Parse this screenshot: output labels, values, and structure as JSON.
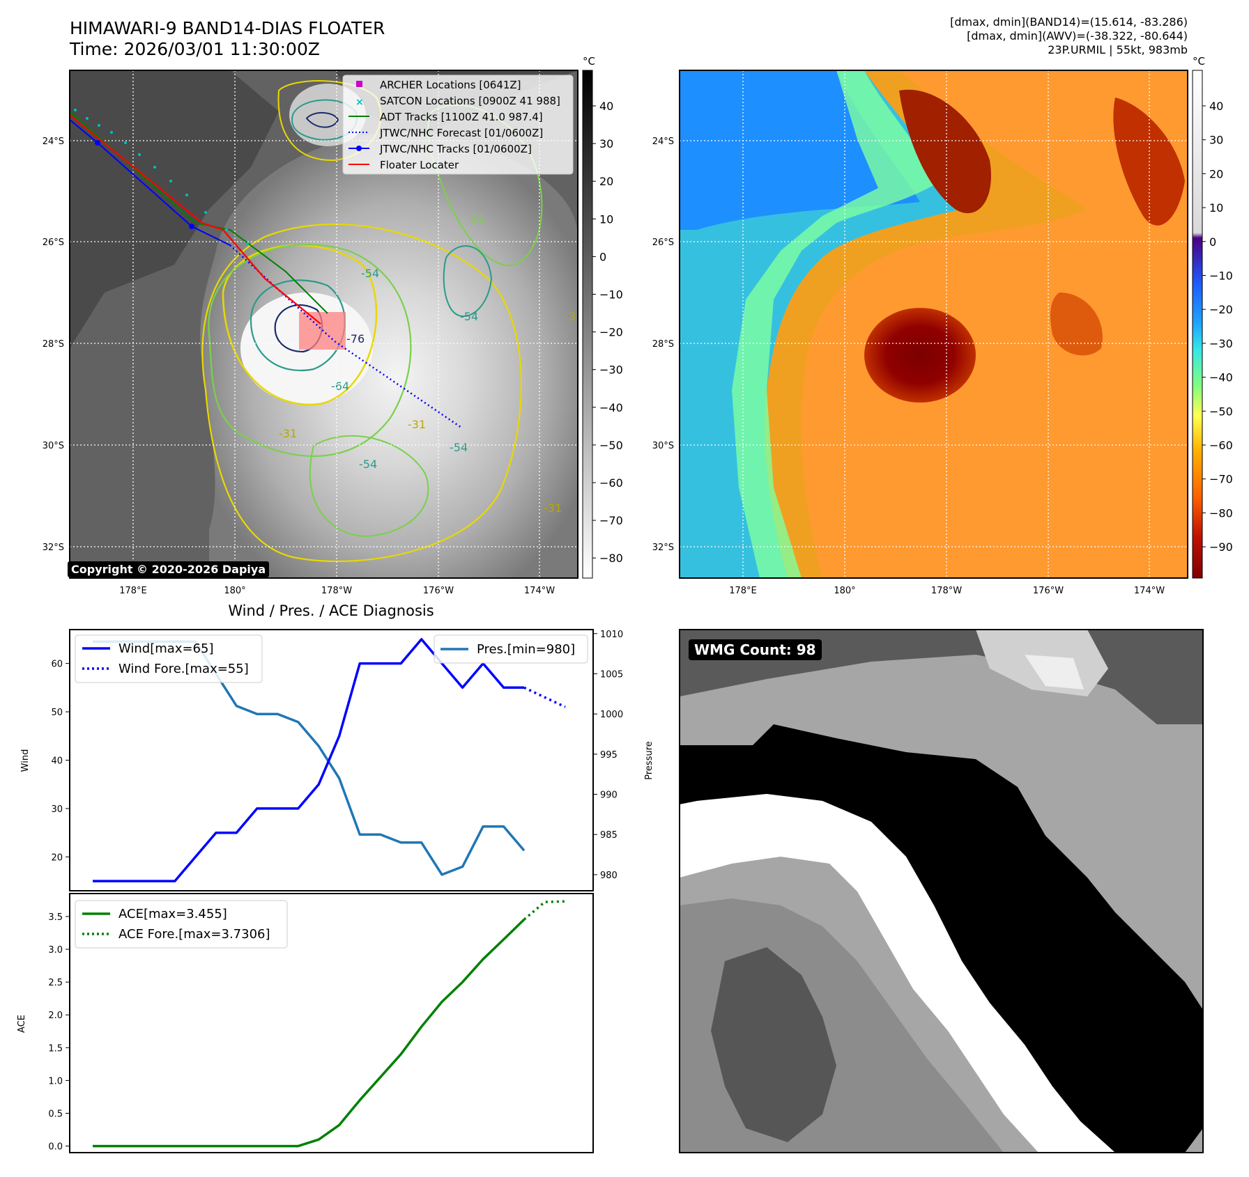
{
  "header": {
    "title_line1": "HIMAWARI-9 BAND14-DIAS FLOATER",
    "title_line2": "Time: 2026/03/01 11:30:00Z",
    "info_line1": "[dmax, dmin](BAND14)=(15.614, -83.286)",
    "info_line2": "[dmax, dmin](AWV)=(-38.322, -80.644)",
    "info_line3": "23P.URMIL | 55kt, 983mb"
  },
  "ir_map": {
    "lat_labels": [
      "24°S",
      "26°S",
      "28°S",
      "30°S",
      "32°S"
    ],
    "lon_labels": [
      "178°E",
      "180°",
      "178°W",
      "176°W",
      "174°W"
    ],
    "contour_labels": [
      "-76",
      "-64",
      "-54",
      "-54",
      "-54",
      "-54",
      "-31",
      "-31",
      "-31",
      "-31",
      "-31"
    ],
    "copyright": "Copyright © 2020-2026 Dapiya",
    "colorbar_unit": "°C",
    "colorbar_ticks": [
      "40",
      "30",
      "20",
      "10",
      "0",
      "−10",
      "−20",
      "−30",
      "−40",
      "−50",
      "−60",
      "−70",
      "−80"
    ],
    "legend": [
      {
        "label": "ARCHER Locations [0641Z]",
        "color": "#cc00cc",
        "style": "square"
      },
      {
        "label": "SATCON Locations [0900Z 41 988]",
        "color": "#00bfbf",
        "style": "x"
      },
      {
        "label": "ADT Tracks [1100Z 41.0 987.4]",
        "color": "#008000",
        "style": "solid"
      },
      {
        "label": "JTWC/NHC Forecast [01/0600Z]",
        "color": "#0000ff",
        "style": "dotted"
      },
      {
        "label": "JTWC/NHC Tracks [01/0600Z]",
        "color": "#0000ff",
        "style": "dotmarker"
      },
      {
        "label": "Floater Locater",
        "color": "#ff0000",
        "style": "solid"
      }
    ]
  },
  "awv_map": {
    "lat_labels": [
      "24°S",
      "26°S",
      "28°S",
      "30°S",
      "32°S"
    ],
    "lon_labels": [
      "178°E",
      "180°",
      "178°W",
      "176°W",
      "174°W"
    ],
    "colorbar_unit": "°C",
    "colorbar_ticks": [
      "40",
      "30",
      "20",
      "10",
      "0",
      "−10",
      "−20",
      "−30",
      "−40",
      "−50",
      "−60",
      "−70",
      "−80",
      "−90"
    ]
  },
  "wmg": {
    "label": "WMG Count: 98"
  },
  "chart_data": [
    {
      "type": "line",
      "title": "Wind / Pres. / ACE Diagnosis",
      "ylabel": "Wind",
      "ylabel_right": "Pressure",
      "ylim": [
        13,
        67
      ],
      "ylim_right": [
        978,
        1010.5
      ],
      "yticks": [
        20,
        30,
        40,
        50,
        60
      ],
      "yticks_right": [
        980,
        985,
        990,
        995,
        1000,
        1005,
        1010
      ],
      "series": [
        {
          "name": "Wind[max=65]",
          "axis": "left",
          "color": "#0000ff",
          "style": "solid",
          "x": [
            0,
            1,
            2,
            3,
            4,
            5,
            6,
            7,
            8,
            9,
            10,
            11,
            12,
            13,
            14,
            15,
            16,
            17,
            18,
            19,
            20,
            21
          ],
          "y": [
            15,
            15,
            15,
            15,
            15,
            20,
            25,
            25,
            30,
            30,
            30,
            35,
            45,
            60,
            60,
            60,
            65,
            60,
            55,
            60,
            55,
            55
          ]
        },
        {
          "name": "Wind Fore.[max=55]",
          "axis": "left",
          "color": "#0000ff",
          "style": "dotted",
          "x": [
            21,
            22,
            23
          ],
          "y": [
            55,
            53,
            51
          ]
        },
        {
          "name": "Pres.[min=980]",
          "axis": "right",
          "color": "#1f77b4",
          "style": "solid",
          "x": [
            0,
            1,
            2,
            3,
            4,
            5,
            6,
            7,
            8,
            9,
            10,
            11,
            12,
            13,
            14,
            15,
            16,
            17,
            18,
            19,
            20,
            21
          ],
          "y": [
            1009,
            1009,
            1009,
            1009,
            1009,
            1009,
            1005,
            1001,
            1000,
            1000,
            999,
            996,
            992,
            985,
            985,
            984,
            984,
            980,
            981,
            986,
            986,
            983
          ]
        }
      ]
    },
    {
      "type": "line",
      "ylabel": "ACE",
      "ylim": [
        -0.1,
        3.85
      ],
      "yticks": [
        0.0,
        0.5,
        1.0,
        1.5,
        2.0,
        2.5,
        3.0,
        3.5
      ],
      "series": [
        {
          "name": "ACE[max=3.455]",
          "color": "#008000",
          "style": "solid",
          "x": [
            0,
            1,
            2,
            3,
            4,
            5,
            6,
            7,
            8,
            9,
            10,
            11,
            12,
            13,
            14,
            15,
            16,
            17,
            18,
            19,
            20,
            21
          ],
          "y": [
            0,
            0,
            0,
            0,
            0,
            0,
            0,
            0,
            0,
            0,
            0,
            0.1,
            0.32,
            0.7,
            1.05,
            1.4,
            1.82,
            2.2,
            2.5,
            2.85,
            3.15,
            3.455
          ]
        },
        {
          "name": "ACE Fore.[max=3.7306]",
          "color": "#008000",
          "style": "dotted",
          "x": [
            21,
            22,
            23
          ],
          "y": [
            3.455,
            3.72,
            3.7306
          ]
        }
      ]
    }
  ]
}
